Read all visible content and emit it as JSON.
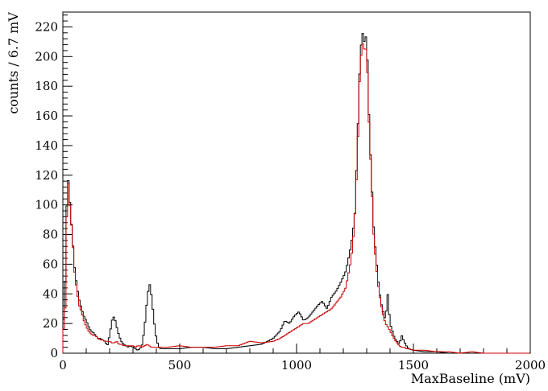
{
  "chart_data": {
    "type": "histogram",
    "title": "",
    "xlabel": "MaxBaseline (mV)",
    "ylabel": "counts / 6.7 mV",
    "xlim": [
      0,
      2000
    ],
    "ylim": [
      0,
      230
    ],
    "x_ticks": [
      0,
      500,
      1000,
      1500,
      2000
    ],
    "y_ticks": [
      0,
      20,
      40,
      60,
      80,
      100,
      120,
      140,
      160,
      180,
      200,
      220
    ],
    "grid": false,
    "legend": "none",
    "bin_width": 6.7,
    "series": [
      {
        "color": "#000000",
        "points": [
          [
            0,
            10
          ],
          [
            10,
            48
          ],
          [
            20,
            124
          ],
          [
            30,
            102
          ],
          [
            40,
            80
          ],
          [
            50,
            58
          ],
          [
            60,
            45
          ],
          [
            70,
            36
          ],
          [
            80,
            30
          ],
          [
            90,
            25
          ],
          [
            100,
            22
          ],
          [
            110,
            18
          ],
          [
            120,
            15
          ],
          [
            130,
            14
          ],
          [
            140,
            12
          ],
          [
            150,
            10
          ],
          [
            160,
            10
          ],
          [
            170,
            9
          ],
          [
            180,
            8
          ],
          [
            190,
            5
          ],
          [
            200,
            12
          ],
          [
            210,
            22
          ],
          [
            220,
            25
          ],
          [
            230,
            18
          ],
          [
            240,
            12
          ],
          [
            250,
            8
          ],
          [
            260,
            6
          ],
          [
            270,
            5
          ],
          [
            280,
            4
          ],
          [
            290,
            5
          ],
          [
            300,
            4
          ],
          [
            310,
            3
          ],
          [
            320,
            2
          ],
          [
            330,
            3
          ],
          [
            340,
            6
          ],
          [
            350,
            18
          ],
          [
            360,
            35
          ],
          [
            370,
            48
          ],
          [
            380,
            38
          ],
          [
            390,
            22
          ],
          [
            400,
            10
          ],
          [
            410,
            4
          ],
          [
            420,
            3
          ],
          [
            450,
            3
          ],
          [
            500,
            3
          ],
          [
            550,
            4
          ],
          [
            600,
            4
          ],
          [
            650,
            3
          ],
          [
            700,
            3
          ],
          [
            750,
            4
          ],
          [
            800,
            5
          ],
          [
            850,
            6
          ],
          [
            900,
            10
          ],
          [
            930,
            15
          ],
          [
            950,
            22
          ],
          [
            970,
            20
          ],
          [
            990,
            25
          ],
          [
            1010,
            28
          ],
          [
            1030,
            22
          ],
          [
            1050,
            24
          ],
          [
            1070,
            28
          ],
          [
            1090,
            32
          ],
          [
            1110,
            35
          ],
          [
            1130,
            30
          ],
          [
            1150,
            38
          ],
          [
            1170,
            42
          ],
          [
            1190,
            48
          ],
          [
            1210,
            55
          ],
          [
            1220,
            62
          ],
          [
            1230,
            70
          ],
          [
            1240,
            80
          ],
          [
            1250,
            95
          ],
          [
            1260,
            140
          ],
          [
            1270,
            190
          ],
          [
            1280,
            218
          ],
          [
            1290,
            210
          ],
          [
            1300,
            215
          ],
          [
            1310,
            160
          ],
          [
            1320,
            120
          ],
          [
            1330,
            85
          ],
          [
            1340,
            65
          ],
          [
            1350,
            48
          ],
          [
            1360,
            35
          ],
          [
            1370,
            28
          ],
          [
            1380,
            22
          ],
          [
            1390,
            40
          ],
          [
            1400,
            20
          ],
          [
            1410,
            15
          ],
          [
            1420,
            10
          ],
          [
            1430,
            8
          ],
          [
            1440,
            6
          ],
          [
            1450,
            12
          ],
          [
            1460,
            8
          ],
          [
            1470,
            5
          ],
          [
            1480,
            3
          ],
          [
            1500,
            2
          ],
          [
            1550,
            1
          ],
          [
            1600,
            1
          ],
          [
            1650,
            0
          ],
          [
            1700,
            0
          ]
        ]
      },
      {
        "color": "#cc0000",
        "points": [
          [
            0,
            10
          ],
          [
            10,
            30
          ],
          [
            20,
            122
          ],
          [
            30,
            100
          ],
          [
            40,
            80
          ],
          [
            50,
            55
          ],
          [
            60,
            42
          ],
          [
            70,
            32
          ],
          [
            80,
            28
          ],
          [
            90,
            22
          ],
          [
            100,
            18
          ],
          [
            110,
            15
          ],
          [
            120,
            13
          ],
          [
            130,
            12
          ],
          [
            140,
            12
          ],
          [
            150,
            10
          ],
          [
            160,
            9
          ],
          [
            170,
            9
          ],
          [
            180,
            8
          ],
          [
            190,
            8
          ],
          [
            200,
            8
          ],
          [
            210,
            7
          ],
          [
            220,
            7
          ],
          [
            230,
            8
          ],
          [
            240,
            6
          ],
          [
            250,
            6
          ],
          [
            260,
            5
          ],
          [
            270,
            5
          ],
          [
            280,
            5
          ],
          [
            290,
            5
          ],
          [
            300,
            5
          ],
          [
            310,
            4
          ],
          [
            320,
            5
          ],
          [
            330,
            5
          ],
          [
            340,
            4
          ],
          [
            350,
            5
          ],
          [
            360,
            6
          ],
          [
            370,
            5
          ],
          [
            380,
            4
          ],
          [
            390,
            4
          ],
          [
            400,
            4
          ],
          [
            450,
            4
          ],
          [
            500,
            5
          ],
          [
            550,
            4
          ],
          [
            600,
            4
          ],
          [
            650,
            4
          ],
          [
            700,
            5
          ],
          [
            750,
            5
          ],
          [
            800,
            8
          ],
          [
            850,
            7
          ],
          [
            900,
            8
          ],
          [
            930,
            10
          ],
          [
            950,
            12
          ],
          [
            970,
            14
          ],
          [
            990,
            16
          ],
          [
            1010,
            18
          ],
          [
            1030,
            20
          ],
          [
            1050,
            20
          ],
          [
            1070,
            22
          ],
          [
            1090,
            24
          ],
          [
            1110,
            26
          ],
          [
            1130,
            28
          ],
          [
            1150,
            30
          ],
          [
            1170,
            34
          ],
          [
            1190,
            38
          ],
          [
            1210,
            44
          ],
          [
            1220,
            52
          ],
          [
            1230,
            60
          ],
          [
            1240,
            72
          ],
          [
            1250,
            95
          ],
          [
            1260,
            130
          ],
          [
            1270,
            185
          ],
          [
            1280,
            210
          ],
          [
            1290,
            205
          ],
          [
            1300,
            205
          ],
          [
            1310,
            155
          ],
          [
            1320,
            118
          ],
          [
            1330,
            80
          ],
          [
            1340,
            60
          ],
          [
            1350,
            45
          ],
          [
            1360,
            34
          ],
          [
            1370,
            26
          ],
          [
            1380,
            20
          ],
          [
            1390,
            18
          ],
          [
            1400,
            15
          ],
          [
            1410,
            12
          ],
          [
            1420,
            9
          ],
          [
            1430,
            7
          ],
          [
            1440,
            5
          ],
          [
            1450,
            4
          ],
          [
            1460,
            4
          ],
          [
            1470,
            3
          ],
          [
            1480,
            3
          ],
          [
            1500,
            2
          ],
          [
            1550,
            2
          ],
          [
            1600,
            1
          ],
          [
            1650,
            1
          ],
          [
            1700,
            0
          ],
          [
            1750,
            1
          ],
          [
            1800,
            0
          ],
          [
            1850,
            0
          ]
        ]
      }
    ]
  }
}
